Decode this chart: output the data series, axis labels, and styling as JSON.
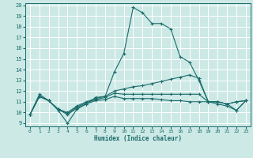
{
  "xlabel": "Humidex (Indice chaleur)",
  "xlim": [
    -0.5,
    23.5
  ],
  "ylim": [
    9,
    20
  ],
  "yticks": [
    9,
    10,
    11,
    12,
    13,
    14,
    15,
    16,
    17,
    18,
    19,
    20
  ],
  "xticks": [
    0,
    1,
    2,
    3,
    4,
    5,
    6,
    7,
    8,
    9,
    10,
    11,
    12,
    13,
    14,
    15,
    16,
    17,
    18,
    19,
    20,
    21,
    22,
    23
  ],
  "background_color": "#cce9e5",
  "line_color": "#1a6b6b",
  "grid_color": "#ffffff",
  "lines": [
    {
      "x": [
        0,
        1,
        2,
        3,
        4,
        5,
        6,
        7,
        8,
        9,
        10,
        11,
        12,
        13,
        14,
        15,
        16,
        17,
        18,
        19,
        20,
        21,
        22,
        23
      ],
      "y": [
        9.8,
        11.7,
        11.1,
        10.2,
        9.0,
        10.3,
        10.8,
        11.4,
        11.5,
        13.8,
        15.5,
        19.8,
        19.3,
        18.3,
        18.3,
        17.8,
        15.2,
        14.7,
        13.0,
        11.0,
        11.0,
        10.8,
        10.2,
        11.1
      ]
    },
    {
      "x": [
        0,
        1,
        2,
        3,
        4,
        5,
        6,
        7,
        8,
        9,
        10,
        11,
        12,
        13,
        14,
        15,
        16,
        17,
        18,
        19,
        20,
        21,
        22,
        23
      ],
      "y": [
        9.8,
        11.5,
        11.1,
        10.3,
        10.0,
        10.6,
        11.0,
        11.3,
        11.5,
        12.0,
        12.2,
        12.4,
        12.5,
        12.7,
        12.9,
        13.1,
        13.3,
        13.5,
        13.2,
        11.0,
        11.0,
        10.8,
        11.0,
        11.1
      ]
    },
    {
      "x": [
        0,
        1,
        2,
        3,
        4,
        5,
        6,
        7,
        8,
        9,
        10,
        11,
        12,
        13,
        14,
        15,
        16,
        17,
        18,
        19,
        20,
        21,
        22,
        23
      ],
      "y": [
        9.8,
        11.5,
        11.1,
        10.3,
        9.9,
        10.5,
        10.9,
        11.2,
        11.4,
        11.8,
        11.7,
        11.7,
        11.7,
        11.7,
        11.7,
        11.7,
        11.7,
        11.7,
        11.7,
        11.0,
        11.0,
        10.8,
        11.0,
        11.1
      ]
    },
    {
      "x": [
        0,
        1,
        2,
        3,
        4,
        5,
        6,
        7,
        8,
        9,
        10,
        11,
        12,
        13,
        14,
        15,
        16,
        17,
        18,
        19,
        20,
        21,
        22,
        23
      ],
      "y": [
        9.8,
        11.5,
        11.1,
        10.3,
        9.8,
        10.4,
        10.8,
        11.1,
        11.2,
        11.5,
        11.3,
        11.3,
        11.3,
        11.3,
        11.2,
        11.1,
        11.1,
        11.0,
        11.0,
        11.0,
        10.8,
        10.6,
        10.2,
        11.1
      ]
    }
  ]
}
